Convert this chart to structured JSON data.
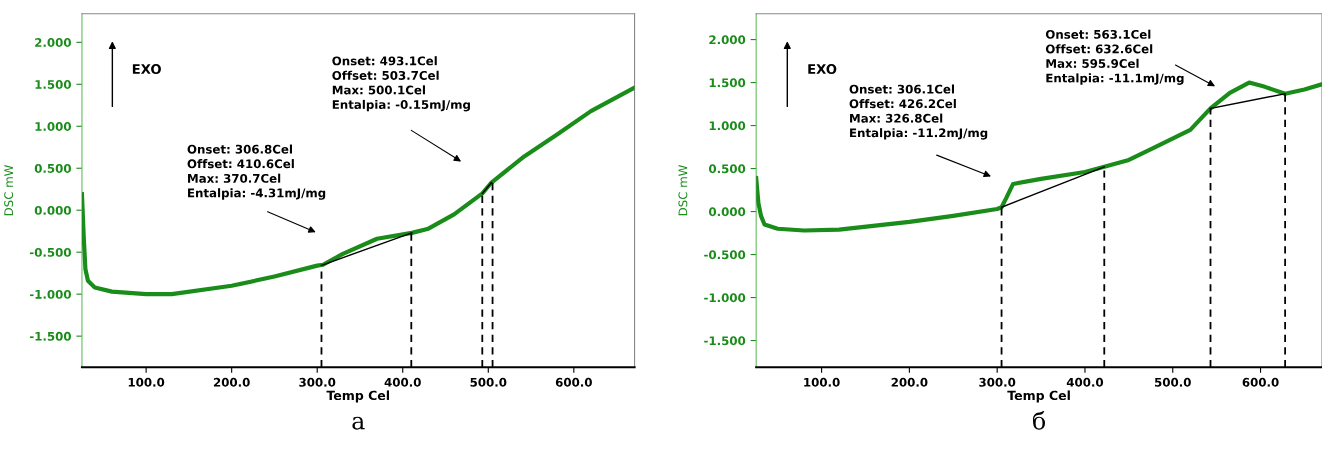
{
  "chart_data": [
    {
      "type": "line",
      "title": "а",
      "xlabel": "Temp Cel",
      "ylabel": "DSC mW",
      "xlim": [
        25,
        671
      ],
      "ylim": [
        -1.87,
        2.34
      ],
      "xticks": [
        {
          "value": 100,
          "label": "100.0"
        },
        {
          "value": 200,
          "label": "200.0"
        },
        {
          "value": 300,
          "label": "300.0"
        },
        {
          "value": 400,
          "label": "400.0"
        },
        {
          "value": 500,
          "label": "500.0"
        },
        {
          "value": 600,
          "label": "600.0"
        }
      ],
      "yticks": [
        {
          "value": -1.5,
          "label": "-1.500"
        },
        {
          "value": -1,
          "label": "-1.000"
        },
        {
          "value": -0.5,
          "label": "-0.500"
        },
        {
          "value": 0,
          "label": "0.000"
        },
        {
          "value": 0.5,
          "label": "0.500"
        },
        {
          "value": 1,
          "label": "1.000"
        },
        {
          "value": 1.5,
          "label": "1.500"
        },
        {
          "value": 2,
          "label": "2.000"
        }
      ],
      "grid": false,
      "legend": false,
      "marker": "none",
      "series": [
        {
          "color": "#1a8c1a",
          "line_style": "solid",
          "x": [
            25,
            27,
            29,
            32,
            40,
            60,
            100,
            130,
            200,
            250,
            300,
            306.8,
            330,
            370,
            410.6,
            430,
            460,
            493.1,
            503.7,
            542,
            580,
            620,
            671
          ],
          "values": [
            0.19,
            -0.3,
            -0.7,
            -0.84,
            -0.92,
            -0.97,
            -1.0,
            -1.0,
            -0.9,
            -0.79,
            -0.66,
            -0.65,
            -0.52,
            -0.34,
            -0.27,
            -0.22,
            -0.05,
            0.2,
            0.33,
            0.64,
            0.9,
            1.18,
            1.46
          ]
        },
        {
          "color": "#000000",
          "line_style": "solid",
          "x": [
            306.8,
            410.6
          ],
          "values": [
            -0.65,
            -0.27
          ]
        },
        {
          "color": "#000000",
          "line_style": "solid",
          "x": [
            493.1,
            503.7
          ],
          "values": [
            0.2,
            0.33
          ]
        },
        {
          "color": "#000000",
          "line_style": "dashed",
          "x": [
            305,
            305
          ],
          "values": [
            -1.87,
            -0.65
          ]
        },
        {
          "color": "#000000",
          "line_style": "dashed",
          "x": [
            410,
            410
          ],
          "values": [
            -1.87,
            -0.27
          ]
        },
        {
          "color": "#000000",
          "line_style": "dashed",
          "x": [
            493,
            493
          ],
          "values": [
            -1.87,
            0.2
          ]
        },
        {
          "color": "#000000",
          "line_style": "dashed",
          "x": [
            505,
            505
          ],
          "values": [
            -1.87,
            0.33
          ]
        }
      ],
      "annotations": [
        "EXO",
        "Onset: 306.8Cel\nOffset: 410.6Cel\nMax: 370.7Cel\nEntalpia: -4.31mJ/mg",
        "Onset: 493.1Cel\nOffset: 503.7Cel\nMax: 500.1Cel\nEntalpia: -0.15mJ/mg"
      ]
    },
    {
      "type": "line",
      "title": "б",
      "xlabel": "Temp Cel",
      "ylabel": "DSC mW",
      "xlim": [
        25.5,
        670
      ],
      "ylim": [
        -1.81,
        2.3
      ],
      "xticks": [
        {
          "value": 100,
          "label": "100.0"
        },
        {
          "value": 200,
          "label": "200.0"
        },
        {
          "value": 300,
          "label": "300.0"
        },
        {
          "value": 400,
          "label": "400.0"
        },
        {
          "value": 500,
          "label": "500.0"
        },
        {
          "value": 600,
          "label": "600.0"
        }
      ],
      "yticks": [
        {
          "value": -1.5,
          "label": "-1.500"
        },
        {
          "value": -1,
          "label": "-1.000"
        },
        {
          "value": -0.5,
          "label": "-0.500"
        },
        {
          "value": 0,
          "label": "0.000"
        },
        {
          "value": 0.5,
          "label": "0.500"
        },
        {
          "value": 1,
          "label": "1.000"
        },
        {
          "value": 1.5,
          "label": "1.500"
        },
        {
          "value": 2,
          "label": "2.000"
        }
      ],
      "grid": false,
      "legend": false,
      "marker": "none",
      "series": [
        {
          "color": "#1a8c1a",
          "line_style": "solid",
          "x": [
            25.5,
            28,
            31,
            35,
            50,
            80,
            120,
            200,
            250,
            300,
            305,
            310,
            318,
            350,
            400,
            422,
            450,
            480,
            520,
            543,
            565,
            587,
            605,
            628,
            650,
            670
          ],
          "values": [
            0.39,
            0.1,
            -0.05,
            -0.15,
            -0.2,
            -0.22,
            -0.21,
            -0.12,
            -0.05,
            0.03,
            0.05,
            0.15,
            0.32,
            0.38,
            0.46,
            0.52,
            0.6,
            0.75,
            0.95,
            1.2,
            1.38,
            1.5,
            1.45,
            1.37,
            1.42,
            1.48
          ]
        },
        {
          "color": "#000000",
          "line_style": "solid",
          "x": [
            305,
            422
          ],
          "values": [
            0.05,
            0.52
          ]
        },
        {
          "color": "#000000",
          "line_style": "solid",
          "x": [
            543,
            628
          ],
          "values": [
            1.2,
            1.37
          ]
        },
        {
          "color": "#000000",
          "line_style": "dashed",
          "x": [
            305,
            305
          ],
          "values": [
            -1.81,
            0.05
          ]
        },
        {
          "color": "#000000",
          "line_style": "dashed",
          "x": [
            422,
            422
          ],
          "values": [
            -1.81,
            0.52
          ]
        },
        {
          "color": "#000000",
          "line_style": "dashed",
          "x": [
            543,
            543
          ],
          "values": [
            -1.81,
            1.2
          ]
        },
        {
          "color": "#000000",
          "line_style": "dashed",
          "x": [
            628,
            628
          ],
          "values": [
            -1.81,
            1.37
          ]
        }
      ],
      "annotations": [
        "EXO",
        "Onset: 306.1Cel\nOffset: 426.2Cel\nMax: 326.8Cel\nEntalpia: -11.2mJ/mg",
        "Onset: 563.1Cel\nOffset: 632.6Cel\nMax: 595.9Cel\nEntalpia: -11.1mJ/mg"
      ]
    }
  ]
}
